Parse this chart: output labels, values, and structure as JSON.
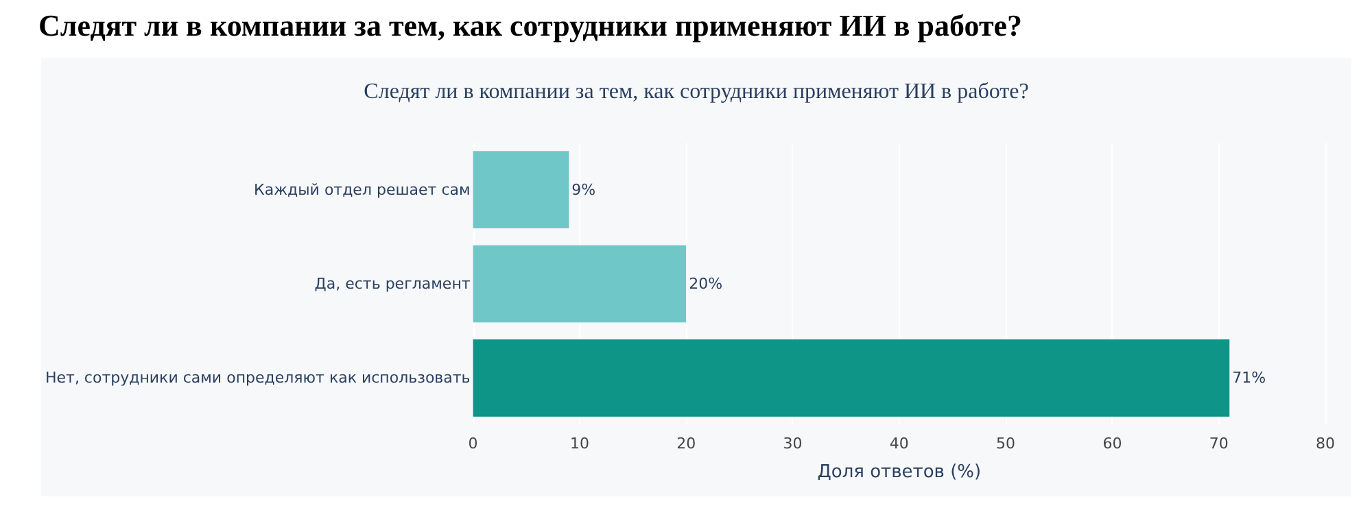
{
  "chart_data": {
    "type": "bar",
    "orientation": "horizontal",
    "title": "Следят ли в компании за тем, как сотрудники применяют ИИ в работе?",
    "subtitle": "Следят ли в компании за тем, как сотрудники применяют ИИ в работе?",
    "xlabel": "Доля ответов (%)",
    "categories": [
      "Каждый отдел решает сам",
      "Да, есть регламент",
      "Нет, сотрудники сами определяют как использовать"
    ],
    "values": [
      9,
      20,
      71
    ],
    "colors": [
      "#6fc8c7",
      "#6fc8c7",
      "#0f9488"
    ],
    "value_labels": [
      "9%",
      "20%",
      "71%"
    ],
    "xlim": [
      0,
      80
    ],
    "xticks": [
      0,
      10,
      20,
      30,
      40,
      50,
      60,
      70,
      80
    ],
    "grid": "x"
  }
}
